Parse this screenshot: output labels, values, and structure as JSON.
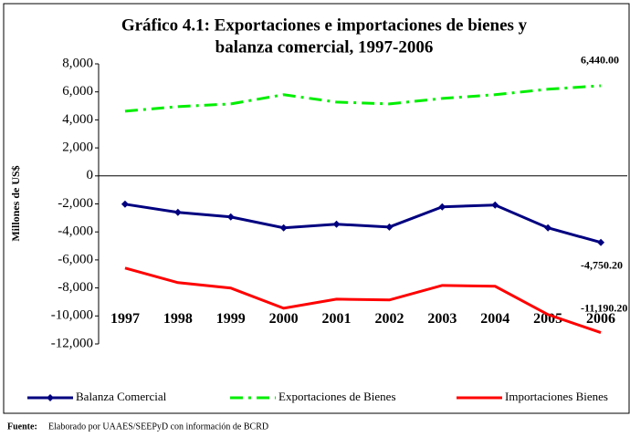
{
  "chart_data": {
    "type": "line",
    "title": [
      "Gráfico 4.1: Exportaciones e importaciones de bienes y",
      "balanza comercial, 1997-2006"
    ],
    "y_label": "Millones de US$",
    "categories": [
      "1997",
      "1998",
      "1999",
      "2000",
      "2001",
      "2002",
      "2003",
      "2004",
      "2005",
      "2006"
    ],
    "series": [
      {
        "name": "Balanza Comercial",
        "color": "#000080",
        "style": "solid-diamond",
        "values": [
          -2020,
          -2600,
          -2930,
          -3710,
          -3450,
          -3650,
          -2210,
          -2080,
          -3710,
          -4750.2
        ],
        "value_labels": [
          null,
          null,
          null,
          null,
          null,
          null,
          null,
          null,
          null,
          "-4,750.20"
        ]
      },
      {
        "name": "Exportaciones de Bienes",
        "color": "#00ee00",
        "style": "dash-dot",
        "values": [
          4620,
          4950,
          5140,
          5800,
          5270,
          5140,
          5530,
          5800,
          6190,
          6440
        ],
        "value_labels": [
          null,
          null,
          null,
          null,
          null,
          null,
          null,
          null,
          null,
          "6,440.00"
        ]
      },
      {
        "name": "Importaciones Bienes",
        "color": "#ff0000",
        "style": "solid",
        "values": [
          -6580,
          -7620,
          -8010,
          -9450,
          -8800,
          -8860,
          -7820,
          -7880,
          -9900,
          -11190.2
        ],
        "value_labels": [
          null,
          null,
          null,
          null,
          null,
          null,
          null,
          null,
          null,
          "-11,190.20"
        ]
      }
    ],
    "ylim": [
      -12000,
      8000
    ],
    "yticks": [
      {
        "value": 8000,
        "label": "8,000"
      },
      {
        "value": 6000,
        "label": "6,000"
      },
      {
        "value": 4000,
        "label": "4,000"
      },
      {
        "value": 2000,
        "label": "2,000"
      },
      0,
      {
        "value": -2000,
        "label": "-2,000"
      },
      {
        "value": -4000,
        "label": "-4,000"
      },
      {
        "value": -6000,
        "label": "-6,000"
      },
      {
        "value": -8000,
        "label": "-8,000"
      },
      {
        "value": -10000,
        "label": "-10,000"
      },
      {
        "value": -12000,
        "label": "-12,000"
      }
    ],
    "source_label": "Fuente:",
    "source": "Elaborado por UAAES/SEEPyD con información de BCRD"
  }
}
